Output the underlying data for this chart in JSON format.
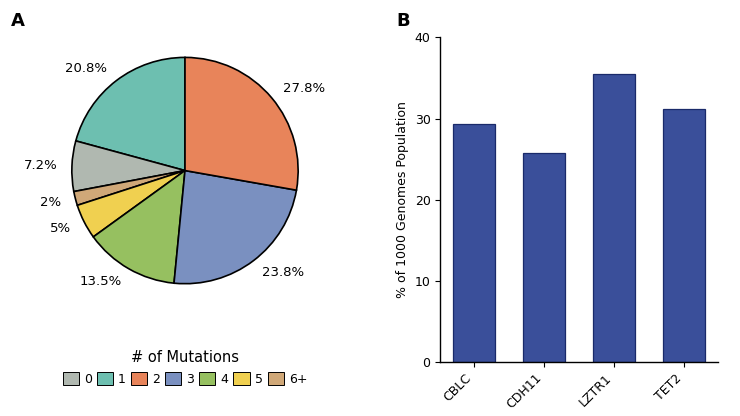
{
  "pie_values": [
    20.8,
    7.2,
    2.0,
    5.0,
    13.5,
    23.8,
    27.8
  ],
  "pie_labels": [
    "20.8%",
    "7.2%",
    "2%",
    "5%",
    "13.5%",
    "23.8%",
    "27.8%"
  ],
  "pie_colors": [
    "#6dbfb0",
    "#b0b8b0",
    "#d0a878",
    "#f0d050",
    "#96c060",
    "#7a90c0",
    "#e8845a"
  ],
  "pie_legend_colors": [
    "#b0b8b0",
    "#6dbfb0",
    "#e8845a",
    "#7a90c0",
    "#96c060",
    "#f0d050",
    "#d0a878"
  ],
  "pie_legend_labels": [
    "0",
    "1",
    "2",
    "3",
    "4",
    "5",
    "6+"
  ],
  "pie_startangle": 90,
  "bar_categories": [
    "CBLC",
    "CDH11",
    "LZTR1",
    "TET2"
  ],
  "bar_values": [
    29.3,
    25.8,
    35.5,
    31.2
  ],
  "bar_color": "#3a4f9a",
  "bar_edgecolor": "#1a2a6a",
  "ylabel": "% of 1000 Genomes Population",
  "ylim": [
    0,
    40
  ],
  "yticks": [
    0,
    10,
    20,
    30,
    40
  ],
  "legend_title": "# of Mutations",
  "label_A": "A",
  "label_B": "B"
}
